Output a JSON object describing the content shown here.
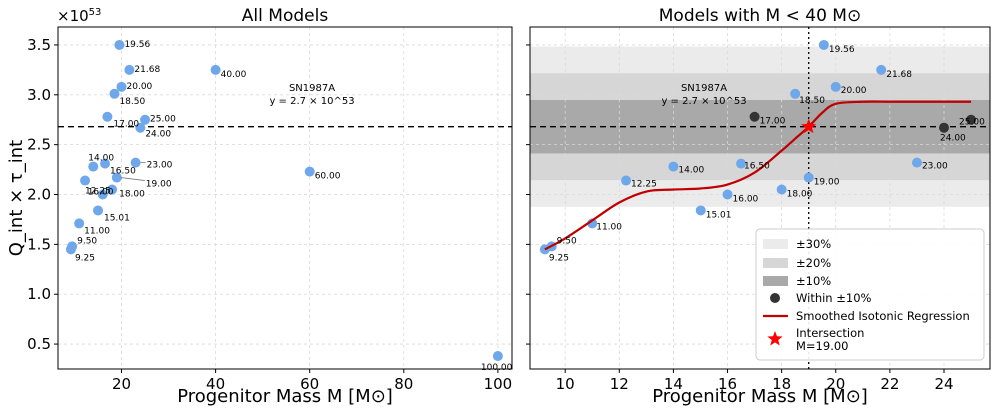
{
  "chart_data": [
    {
      "type": "scatter",
      "title": "All Models",
      "xlabel": "Progenitor Mass M [M⊙]",
      "ylabel": "Q_int × τ_int",
      "y_scale_label": "×10^53",
      "xlim": [
        6.5,
        103
      ],
      "ylim": [
        0.25,
        3.68
      ],
      "xticks": [
        20,
        40,
        60,
        80,
        100
      ],
      "yticks": [
        0.5,
        1.0,
        1.5,
        2.0,
        2.5,
        3.0,
        3.5
      ],
      "ytick_labels": [
        "0.5",
        "1.0",
        "1.5",
        "2.0",
        "2.5",
        "3.0",
        "3.5"
      ],
      "points": [
        {
          "m": 9.25,
          "y": 1.45,
          "label": "9.25"
        },
        {
          "m": 9.5,
          "y": 1.48,
          "label": "9.50"
        },
        {
          "m": 11.0,
          "y": 1.71,
          "label": "11.00"
        },
        {
          "m": 12.25,
          "y": 2.14,
          "label": "12.25"
        },
        {
          "m": 14.0,
          "y": 2.28,
          "label": "14.00"
        },
        {
          "m": 15.01,
          "y": 1.84,
          "label": "15.01"
        },
        {
          "m": 16.0,
          "y": 2.0,
          "label": "16.00"
        },
        {
          "m": 16.5,
          "y": 2.31,
          "label": "16.50"
        },
        {
          "m": 17.0,
          "y": 2.78,
          "label": "17.00"
        },
        {
          "m": 18.0,
          "y": 2.05,
          "label": "18.00"
        },
        {
          "m": 18.5,
          "y": 3.01,
          "label": "18.50"
        },
        {
          "m": 19.0,
          "y": 2.17,
          "label": "19.00"
        },
        {
          "m": 19.56,
          "y": 3.5,
          "label": "19.56"
        },
        {
          "m": 20.0,
          "y": 3.08,
          "label": "20.00"
        },
        {
          "m": 21.68,
          "y": 3.25,
          "label": "21.68"
        },
        {
          "m": 23.0,
          "y": 2.32,
          "label": "23.00"
        },
        {
          "m": 24.0,
          "y": 2.67,
          "label": "24.00"
        },
        {
          "m": 25.0,
          "y": 2.75,
          "label": "25.00"
        },
        {
          "m": 40.0,
          "y": 3.25,
          "label": "40.00"
        },
        {
          "m": 60.0,
          "y": 2.23,
          "label": "60.00"
        },
        {
          "m": 100.0,
          "y": 0.38,
          "label": "100.00"
        }
      ],
      "reference_line": {
        "y": 2.68,
        "label": "SN1987A",
        "sublabel": "y = 2.7 × 10^53"
      },
      "grid": true
    },
    {
      "type": "scatter",
      "title": "Models with M < 40 M⊙",
      "xlabel": "Progenitor Mass M [M⊙]",
      "xlim": [
        8.7,
        25.7
      ],
      "ylim": [
        0.25,
        3.68
      ],
      "xticks": [
        10,
        12,
        14,
        16,
        18,
        20,
        22,
        24
      ],
      "reference_line": {
        "y": 2.68,
        "label": "SN1987A",
        "sublabel": "y = 2.7 × 10^53"
      },
      "bands": [
        {
          "label": "±30%",
          "frac": 0.3,
          "color": "#ebebeb"
        },
        {
          "label": "±20%",
          "frac": 0.2,
          "color": "#d6d6d6"
        },
        {
          "label": "±10%",
          "frac": 0.1,
          "color": "#a9a9a9"
        }
      ],
      "within_10pct": [
        "17.00",
        "24.00",
        "25.00"
      ],
      "regression": {
        "label": "Smoothed Isotonic Regression",
        "m": [
          9.25,
          10,
          11,
          12,
          13,
          14,
          15,
          16,
          17,
          18,
          18.5,
          19,
          19.5,
          20,
          21,
          22,
          23,
          24,
          25
        ],
        "y": [
          1.45,
          1.56,
          1.74,
          1.92,
          2.03,
          2.05,
          2.06,
          2.1,
          2.22,
          2.44,
          2.56,
          2.68,
          2.82,
          2.91,
          2.93,
          2.93,
          2.93,
          2.93,
          2.93
        ]
      },
      "intersection": {
        "m": 19.0,
        "y": 2.68,
        "label": "Intersection",
        "sublabel": "M=19.00"
      },
      "grid": true
    }
  ],
  "legend": {
    "items": [
      {
        "key": "band30",
        "label": "±30%"
      },
      {
        "key": "band20",
        "label": "±20%"
      },
      {
        "key": "band10",
        "label": "±10%"
      },
      {
        "key": "within",
        "label": "Within ±10%"
      },
      {
        "key": "regression",
        "label": "Smoothed Isotonic Regression"
      },
      {
        "key": "intersection",
        "label": "Intersection",
        "sublabel": "M=19.00"
      }
    ]
  },
  "colors": {
    "point": "#6ea8ea",
    "within_point": "#333333",
    "regression": "#c00000",
    "star": "#ff0000",
    "grid": "#d9d9d9"
  }
}
